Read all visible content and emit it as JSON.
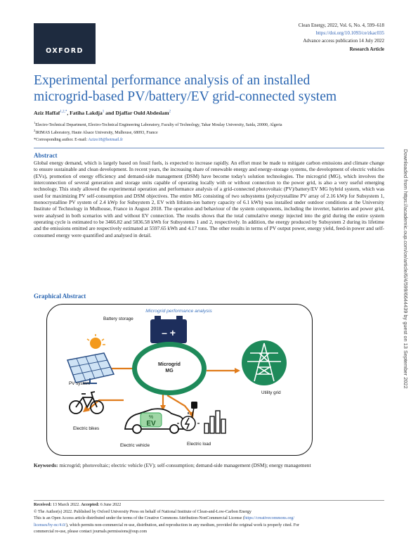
{
  "header": {
    "logo_text": "OXFORD",
    "journal_ref": "Clean Energy, 2022, Vol. 6, No. 4, 599–618",
    "doi": "https://doi.org/10.1093/ce/zkac035",
    "advance_access": "Advance access publication 14 July 2022",
    "article_type": "Research Article"
  },
  "title_line1": "Experimental performance analysis of an installed",
  "title_line2": "microgrid-based PV/battery/EV grid-connected system",
  "authors": {
    "a1": "Aziz Haffaf",
    "a1_sup": "1,2,*",
    "sep1": ", ",
    "a2": "Fatiha Lakdja",
    "a2_sup": "1",
    "sep2": " and ",
    "a3": "Djaffar Ould Abdeslam",
    "a3_sup": "2"
  },
  "affiliations": {
    "aff1_sup": "1",
    "aff1": "Electro-Technical Department, Electro-Technical Engineering Laboratory, Faculty of Technology, Tahar Moulay University, Saida, 20000, Algeria",
    "aff2_sup": "2",
    "aff2": "IRIMAS Laboratory, Haute Alsace University, Mulhouse, 68093, France",
    "corr": "*Corresponding author. E-mail: ",
    "email": "Azizo18@hotmail.fr"
  },
  "abstract": {
    "heading": "Abstract",
    "text": "Global energy demand, which is largely based on fossil fuels, is expected to increase rapidly. An effort must be made to mitigate carbon emissions and climate change to ensure sustainable and clean development. In recent years, the increasing share of renewable energy and energy-storage systems, the development of electric vehicles (EVs), promotion of energy efficiency and demand-side management (DSM) have become today's solution technologies. The microgrid (MG), which involves the interconnection of several generation and storage units capable of operating locally with or without connection to the power grid, is also a very useful emerging technology. This study allowed the experimental operation and performance analysis of a grid-connected photovoltaic (PV)/battery/EV MG hybrid system, which was used for maximizing PV self-consumption and DSM objectives. The entire MG consisting of two subsystems (polycrystalline PV array of 2.16 kWp for Subsystem 1, monocrystalline PV system of 2.4 kWp for Subsystem 2, EV with lithium-ion battery capacity of 6.1 kWh) was installed under outdoor conditions at the University Institute of Technology in Mulhouse, France in August 2018. The operation and behaviour of the system components, including the inverter, batteries and power grid, were analysed in both scenarios with and without EV connection. The results shows that the total cumulative energy injected into the grid during the entire system operating cycle is estimated to be 3466.82 and 5836.58 kWh for Subsystems 1 and 2, respectively. In addition, the energy produced by Subsystem 2 during its lifetime and the emissions emitted are respectively estimated at 5597.65 kWh and 4.17 tons. The other results in terms of PV output power, energy yield, feed-in power and self-consumed energy were quantified and analysed in detail."
  },
  "graphical_abstract": {
    "heading": "Graphical Abstract",
    "figure_title": "Microgrid performance analysis",
    "battery_label": "Battery storage",
    "battery_signs": "–  +",
    "pv_label": "PV system",
    "center_line1": "Microgrid",
    "center_line2": "MG",
    "grid_label": "Utility grid",
    "bikes_label": "Electric bikes",
    "ev_label": "Electric vehicle",
    "ev_badge_top": "%",
    "ev_badge": "EV",
    "load_label": "Electric load"
  },
  "keywords": {
    "label": "Keywords:",
    "text": "microgrid; photovoltaic; electric vehicle (EV); self-consumption; demand-side management (DSM); energy management"
  },
  "footer": {
    "received_label": "Received:",
    "received": "13 March 2022.",
    "accepted_label": "Accepted:",
    "accepted": "6 June 2022",
    "copyright": "© The Author(s) 2022. Published by Oxford University Press on behalf of National Institute of Clean-and-Low-Carbon Energy",
    "oa_text": "This is an Open Access article distributed under the terms of the Creative Commons Attribution-NonCommercial License (",
    "oa_link1": "https://creativecommons.org/",
    "oa_link2": "licenses/by-nc/4.0/",
    "oa_text2": "), which permits non-commercial re-use, distribution, and reproduction in any medium, provided the original work is properly cited. For",
    "oa_text3": "commercial re-use, please contact journals.permissions@oup.com"
  },
  "sidebar": {
    "download_note": "Downloaded from https://academic.oup.com/ce/article/6/4/599/6644439 by guest on 13 September 2022"
  },
  "colors": {
    "title_blue": "#2c67b2",
    "logo_navy": "#1e2b3f",
    "mg_green": "#1e8a5a",
    "ev_green": "#3aa85a"
  }
}
